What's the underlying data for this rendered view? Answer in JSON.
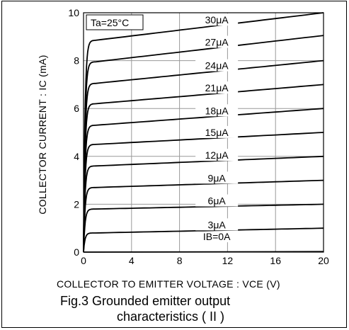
{
  "chart_data": {
    "type": "line",
    "title": "",
    "xlabel": "COLLECTOR TO EMITTER VOLTAGE : VCE (V)",
    "ylabel": "COLLECTOR CURRENT : IC (mA)",
    "xlim": [
      0,
      20
    ],
    "ylim": [
      0,
      10
    ],
    "xticks": [
      0,
      4,
      8,
      12,
      16,
      20
    ],
    "yticks": [
      0,
      2,
      4,
      6,
      8,
      10
    ],
    "grid": true,
    "annotation": "Ta=25°C",
    "series": [
      {
        "name": "IB=0A",
        "values_at_vce_1_20": [
          0.0,
          0.0
        ]
      },
      {
        "name": "3μA",
        "values_at_vce_1_20": [
          0.8,
          1.0
        ]
      },
      {
        "name": "6μA",
        "values_at_vce_1_20": [
          1.8,
          2.0
        ]
      },
      {
        "name": "9μA",
        "values_at_vce_1_20": [
          2.7,
          3.0
        ]
      },
      {
        "name": "12μA",
        "values_at_vce_1_20": [
          3.6,
          4.0
        ]
      },
      {
        "name": "15μA",
        "values_at_vce_1_20": [
          4.5,
          5.0
        ]
      },
      {
        "name": "18μA",
        "values_at_vce_1_20": [
          5.3,
          6.0
        ]
      },
      {
        "name": "21μA",
        "values_at_vce_1_20": [
          6.2,
          7.0
        ]
      },
      {
        "name": "24μA",
        "values_at_vce_1_20": [
          7.05,
          8.0
        ]
      },
      {
        "name": "27μA",
        "values_at_vce_1_20": [
          7.95,
          9.05
        ]
      },
      {
        "name": "30μA",
        "values_at_vce_1_20": [
          8.85,
          10.0
        ]
      }
    ]
  },
  "caption": {
    "line1": "Fig.3    Grounded emitter output",
    "line2": "characteristics ( II )"
  }
}
